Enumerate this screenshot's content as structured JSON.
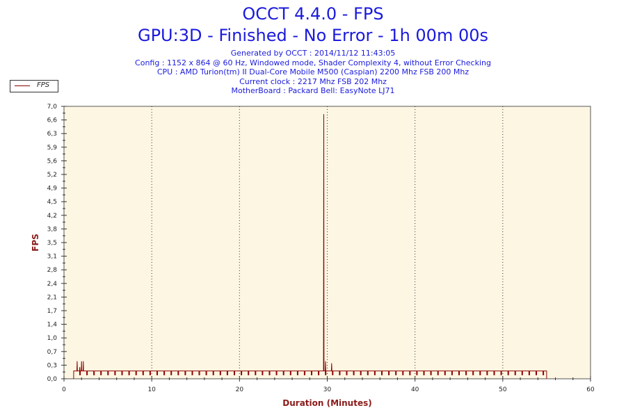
{
  "chart_data": {
    "type": "line",
    "title": "OCCT 4.4.0 - FPS",
    "subtitle": "GPU:3D - Finished - No Error - 1h 00m 00s",
    "info_lines": [
      "Generated by OCCT : 2014/11/12 11:43:05",
      "Config : 1152 x 864 @ 60 Hz, Windowed mode, Shader Complexity 4, without Error Checking",
      "CPU : AMD Turion(tm) II Dual-Core Mobile M500 (Caspian) 2200 Mhz FSB 200 Mhz",
      "Current clock : 2217 Mhz FSB 202 Mhz",
      "MotherBoard : Packard Bell: EasyNote LJ71"
    ],
    "xlabel": "Duration (Minutes)",
    "ylabel": "FPS",
    "xlim": [
      0,
      60
    ],
    "ylim": [
      0,
      7.0
    ],
    "x_ticks": [
      "0",
      "10",
      "20",
      "30",
      "40",
      "50",
      "60"
    ],
    "y_ticks": [
      "0,0",
      "0,3",
      "0,7",
      "1,0",
      "1,4",
      "1,7",
      "2,1",
      "2,4",
      "2,8",
      "3,1",
      "3,5",
      "3,8",
      "4,2",
      "4,5",
      "4,9",
      "5,2",
      "5,6",
      "5,9",
      "6,3",
      "6,6",
      "7,0"
    ],
    "grid": "vertical-dotted",
    "legend": "top-left",
    "colors": {
      "series": "#8b0000",
      "plot_bg": "#fdf6e3",
      "title": "#1a1adc",
      "axis_title": "#8b1a1a"
    },
    "series": [
      {
        "name": "FPS",
        "baseline": 0.2,
        "dip_value": 0.1,
        "x_start": 1.1,
        "x_end": 55.0,
        "dip_spacing_minutes": 0.8,
        "spikes": [
          {
            "x": 1.5,
            "y": 0.45
          },
          {
            "x": 1.8,
            "y": 0.3
          },
          {
            "x": 2.0,
            "y": 0.45
          },
          {
            "x": 2.2,
            "y": 0.45
          },
          {
            "x": 29.6,
            "y": 6.8
          },
          {
            "x": 29.8,
            "y": 0.45
          },
          {
            "x": 30.5,
            "y": 0.4
          }
        ]
      }
    ]
  }
}
